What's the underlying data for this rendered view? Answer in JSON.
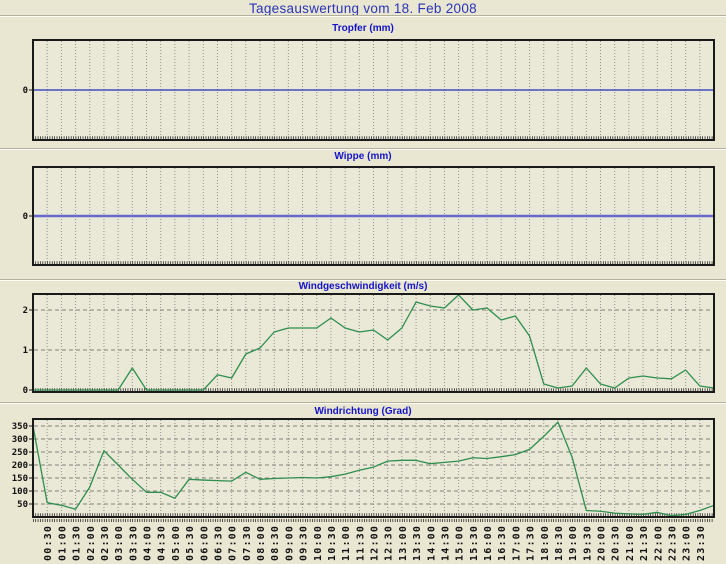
{
  "page": {
    "title": "Tagesauswertung vom 18. Feb 2008"
  },
  "colors": {
    "page_bg": "#e9e6d2",
    "plot_bg": "#eae8d7",
    "page_title": "#2a35b8",
    "chart_title": "#1414c8",
    "axis_text": "#111111",
    "plot_border": "#1a1a1a",
    "grid_vertical": "#90908a",
    "grid_horizontal": "#82827c",
    "separator": "#b4b09f",
    "wind_line_green": "#2e8f4e",
    "zero_line_blue": "#2233bb",
    "zero_line_blue_thick": "#6668cc"
  },
  "x_axis": {
    "start": "00:00",
    "end": "24:00",
    "step_minutes": 30,
    "labels": [
      "00:30",
      "01:00",
      "01:30",
      "02:00",
      "02:30",
      "03:00",
      "03:30",
      "04:00",
      "04:30",
      "05:00",
      "05:30",
      "06:00",
      "06:30",
      "07:00",
      "07:30",
      "08:00",
      "08:30",
      "09:00",
      "09:30",
      "10:00",
      "10:30",
      "11:00",
      "11:30",
      "12:00",
      "12:30",
      "13:00",
      "13:30",
      "14:00",
      "14:30",
      "15:00",
      "15:30",
      "16:00",
      "16:30",
      "17:00",
      "17:30",
      "18:00",
      "18:30",
      "19:00",
      "19:30",
      "20:00",
      "20:30",
      "21:00",
      "21:30",
      "22:00",
      "22:30",
      "23:00",
      "23:30"
    ]
  },
  "chart_data": [
    {
      "type": "line",
      "title": "Tropfer (mm)",
      "ylabel_ticks": [
        0
      ],
      "ylim": [
        -1,
        1
      ],
      "color": "#2233bb",
      "line_width": 1.3,
      "series": [
        {
          "name": "Tropfer",
          "values": [
            0,
            0,
            0,
            0,
            0,
            0,
            0,
            0,
            0,
            0,
            0,
            0,
            0,
            0,
            0,
            0,
            0,
            0,
            0,
            0,
            0,
            0,
            0,
            0,
            0,
            0,
            0,
            0,
            0,
            0,
            0,
            0,
            0,
            0,
            0,
            0,
            0,
            0,
            0,
            0,
            0,
            0,
            0,
            0,
            0,
            0,
            0,
            0,
            0
          ]
        }
      ]
    },
    {
      "type": "line",
      "title": "Wippe (mm)",
      "ylabel_ticks": [
        0
      ],
      "ylim": [
        -1,
        1
      ],
      "color": "#6668cc",
      "line_width": 2.4,
      "series": [
        {
          "name": "Wippe",
          "values": [
            0,
            0,
            0,
            0,
            0,
            0,
            0,
            0,
            0,
            0,
            0,
            0,
            0,
            0,
            0,
            0,
            0,
            0,
            0,
            0,
            0,
            0,
            0,
            0,
            0,
            0,
            0,
            0,
            0,
            0,
            0,
            0,
            0,
            0,
            0,
            0,
            0,
            0,
            0,
            0,
            0,
            0,
            0,
            0,
            0,
            0,
            0,
            0,
            0
          ]
        }
      ]
    },
    {
      "type": "line",
      "title": "Windgeschwindigkeit (m/s)",
      "ylabel_ticks": [
        0,
        1,
        2
      ],
      "ylim": [
        0,
        2.4
      ],
      "color": "#2e8f4e",
      "line_width": 1.3,
      "series": [
        {
          "name": "Windgeschwindigkeit",
          "values": [
            0,
            0,
            0,
            0,
            0,
            0,
            0,
            0.55,
            0,
            0,
            0,
            0,
            0,
            0.38,
            0.3,
            0.9,
            1.05,
            1.45,
            1.55,
            1.55,
            1.55,
            1.8,
            1.55,
            1.45,
            1.5,
            1.25,
            1.55,
            2.2,
            2.1,
            2.05,
            2.4,
            2.0,
            2.05,
            1.75,
            1.85,
            1.35,
            0.15,
            0.05,
            0.1,
            0.55,
            0.15,
            0.05,
            0.3,
            0.35,
            0.3,
            0.28,
            0.5,
            0.1,
            0.05
          ]
        }
      ]
    },
    {
      "type": "line",
      "title": "Windrichtung (Grad)",
      "ylabel_ticks": [
        50,
        100,
        150,
        200,
        250,
        300,
        350
      ],
      "ylim": [
        0,
        377
      ],
      "color": "#2e8f4e",
      "line_width": 1.3,
      "series": [
        {
          "name": "Windrichtung",
          "values": [
            350,
            55,
            45,
            30,
            115,
            255,
            200,
            145,
            95,
            95,
            72,
            145,
            142,
            140,
            138,
            172,
            145,
            148,
            150,
            152,
            150,
            155,
            165,
            180,
            192,
            215,
            218,
            218,
            205,
            210,
            215,
            228,
            225,
            232,
            240,
            260,
            310,
            365,
            230,
            25,
            22,
            15,
            12,
            10,
            18,
            5,
            10,
            25,
            45
          ]
        }
      ]
    }
  ]
}
